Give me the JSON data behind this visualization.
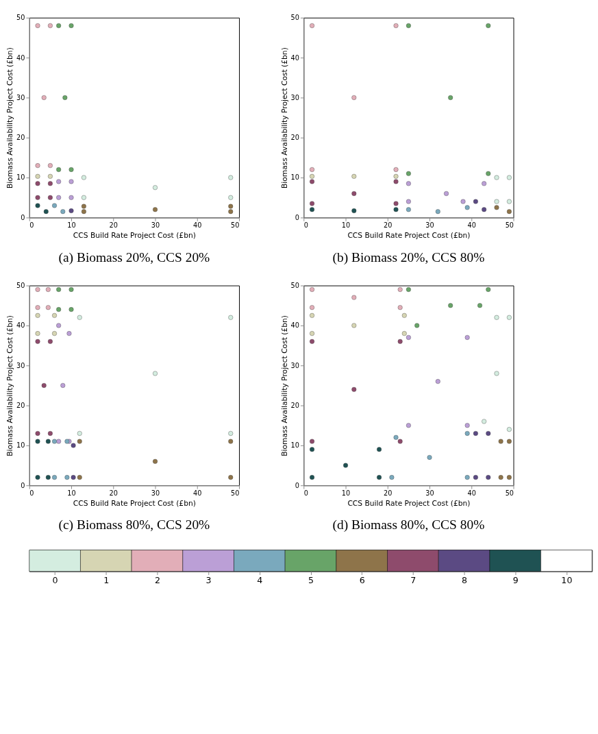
{
  "chart_data": [
    {
      "type": "scatter",
      "title": "(a) Biomass 20%, CCS 20%",
      "xlabel": "CCS Build Rate Project Cost (£bn)",
      "ylabel": "Biomass Availability Project Cost (£bn)",
      "xlim": [
        0,
        50
      ],
      "ylim": [
        0,
        50
      ],
      "xticks": [
        0,
        10,
        20,
        30,
        40,
        50
      ],
      "yticks": [
        0,
        10,
        20,
        30,
        40,
        50
      ],
      "grid": false,
      "marker": "circle",
      "clim": [
        -0.5,
        10.5
      ],
      "cticks": [
        0,
        1,
        2,
        3,
        4,
        5,
        6,
        7,
        8,
        9,
        10
      ],
      "x": [
        2,
        5,
        2,
        5,
        3.5,
        7,
        10,
        7,
        10,
        8.5,
        2,
        5,
        2,
        5,
        2,
        5,
        7,
        10,
        7,
        10,
        13,
        48,
        13,
        48,
        30,
        13,
        48,
        13,
        48,
        30,
        2,
        4,
        6,
        8,
        10
      ],
      "values": [
        48,
        48,
        13,
        13,
        30,
        48,
        48,
        12,
        12,
        30,
        10.3,
        10.3,
        8.5,
        8.5,
        5,
        5,
        9,
        9,
        5,
        5,
        10,
        10,
        5,
        5,
        7.5,
        2.8,
        2.8,
        1.5,
        1.5,
        2,
        3,
        1.5,
        3,
        1.5,
        1.7
      ],
      "cvalues": [
        2,
        2,
        2,
        2,
        2,
        5,
        5,
        5,
        5,
        5,
        1,
        1,
        7,
        7,
        7,
        7,
        3,
        3,
        3,
        3,
        0,
        0,
        0,
        0,
        0,
        6,
        6,
        6,
        6,
        6,
        9,
        9,
        4,
        4,
        8
      ],
      "colors": [
        "#e2aeb8",
        "#e2aeb8",
        "#e2aeb8",
        "#e2aeb8",
        "#e2aeb8",
        "#68a468",
        "#68a468",
        "#68a468",
        "#68a468",
        "#68a468",
        "#d6d5b3",
        "#d6d5b3",
        "#8e4b6c",
        "#8e4b6c",
        "#8e4b6c",
        "#8e4b6c",
        "#bb9fd6",
        "#bb9fd6",
        "#bb9fd6",
        "#bb9fd6",
        "#d4ede0",
        "#d4ede0",
        "#d4ede0",
        "#d4ede0",
        "#d4ede0",
        "#8e744a",
        "#8e744a",
        "#8e744a",
        "#8e744a",
        "#8e744a",
        "#1f5253",
        "#1f5253",
        "#7aa9bd",
        "#7aa9bd",
        "#5b4a83"
      ]
    },
    {
      "type": "scatter",
      "title": "(b) Biomass 20%, CCS 80%",
      "xlabel": "CCS Build Rate Project Cost (£bn)",
      "ylabel": "Biomass Availability Project Cost (£bn)",
      "xlim": [
        0,
        50
      ],
      "ylim": [
        0,
        50
      ],
      "xticks": [
        0,
        10,
        20,
        30,
        40,
        50
      ],
      "yticks": [
        0,
        10,
        20,
        30,
        40,
        50
      ],
      "grid": false,
      "marker": "circle",
      "x": [
        2,
        22,
        2,
        22,
        12,
        25,
        44,
        25,
        44,
        35,
        2,
        22,
        12,
        2,
        22,
        2,
        22,
        12,
        2,
        12,
        22,
        25,
        43,
        25,
        38,
        34,
        25,
        32,
        39,
        41,
        43,
        46,
        49,
        46,
        49,
        46,
        49
      ],
      "values": [
        48,
        48,
        12,
        12,
        30,
        48,
        48,
        11,
        11,
        30,
        10.3,
        10.3,
        10.3,
        9,
        9,
        3.5,
        3.5,
        6,
        2,
        1.7,
        2,
        8.5,
        8.5,
        4,
        4,
        6,
        2,
        1.5,
        2.5,
        4,
        2,
        10,
        10,
        4,
        4,
        2.5,
        1.5
      ],
      "colors": [
        "#e2aeb8",
        "#e2aeb8",
        "#e2aeb8",
        "#e2aeb8",
        "#e2aeb8",
        "#68a468",
        "#68a468",
        "#68a468",
        "#68a468",
        "#68a468",
        "#d6d5b3",
        "#d6d5b3",
        "#d6d5b3",
        "#8e4b6c",
        "#8e4b6c",
        "#8e4b6c",
        "#8e4b6c",
        "#8e4b6c",
        "#1f5253",
        "#1f5253",
        "#1f5253",
        "#bb9fd6",
        "#bb9fd6",
        "#bb9fd6",
        "#bb9fd6",
        "#bb9fd6",
        "#7aa9bd",
        "#7aa9bd",
        "#7aa9bd",
        "#5b4a83",
        "#5b4a83",
        "#d4ede0",
        "#d4ede0",
        "#d4ede0",
        "#d4ede0",
        "#8e744a",
        "#8e744a"
      ]
    },
    {
      "type": "scatter",
      "title": "(c) Biomass 80%, CCS 20%",
      "xlabel": "CCS Build Rate Project Cost (£bn)",
      "ylabel": "Biomass Availability Project Cost (£bn)",
      "xlim": [
        0,
        50
      ],
      "ylim": [
        0,
        50
      ],
      "xticks": [
        0,
        10,
        20,
        30,
        40,
        50
      ],
      "yticks": [
        0,
        10,
        20,
        30,
        40,
        50
      ],
      "grid": false,
      "marker": "circle",
      "x": [
        2,
        4.5,
        2,
        4.5,
        7,
        10,
        7,
        10,
        2,
        6,
        2,
        6,
        2,
        5,
        2,
        5,
        3.5,
        7,
        9.5,
        7,
        9.5,
        8,
        12,
        48,
        12,
        48,
        30,
        2,
        4.5,
        2,
        4.5,
        6,
        9,
        6,
        9,
        10.5,
        10.5,
        12,
        48,
        12,
        48,
        30
      ],
      "values": [
        49,
        49,
        44.5,
        44.5,
        49,
        49,
        44,
        44,
        42.5,
        42.5,
        38,
        38,
        36,
        36,
        13,
        13,
        25,
        40,
        38,
        11,
        11,
        25,
        42,
        42,
        13,
        13,
        28,
        11,
        11,
        2,
        2,
        11,
        11,
        2,
        2,
        10,
        2,
        11,
        11,
        2,
        2,
        6
      ],
      "colors": [
        "#e2aeb8",
        "#e2aeb8",
        "#e2aeb8",
        "#e2aeb8",
        "#68a468",
        "#68a468",
        "#68a468",
        "#68a468",
        "#d6d5b3",
        "#d6d5b3",
        "#d6d5b3",
        "#d6d5b3",
        "#8e4b6c",
        "#8e4b6c",
        "#8e4b6c",
        "#8e4b6c",
        "#8e4b6c",
        "#bb9fd6",
        "#bb9fd6",
        "#bb9fd6",
        "#bb9fd6",
        "#bb9fd6",
        "#d4ede0",
        "#d4ede0",
        "#d4ede0",
        "#d4ede0",
        "#d4ede0",
        "#1f5253",
        "#1f5253",
        "#1f5253",
        "#1f5253",
        "#7aa9bd",
        "#7aa9bd",
        "#7aa9bd",
        "#7aa9bd",
        "#5b4a83",
        "#5b4a83",
        "#8e744a",
        "#8e744a",
        "#8e744a",
        "#8e744a",
        "#8e744a"
      ]
    },
    {
      "type": "scatter",
      "title": "(d) Biomass 80%, CCS 80%",
      "xlabel": "CCS Build Rate Project Cost (£bn)",
      "ylabel": "Biomass Availability Project Cost (£bn)",
      "xlim": [
        0,
        50
      ],
      "ylim": [
        0,
        50
      ],
      "xticks": [
        0,
        10,
        20,
        30,
        40,
        50
      ],
      "yticks": [
        0,
        10,
        20,
        30,
        40,
        50
      ],
      "grid": false,
      "marker": "circle",
      "x": [
        2,
        23,
        2,
        23,
        12,
        25,
        44,
        27,
        42,
        35,
        2,
        24,
        2,
        24,
        12,
        2,
        23,
        2,
        23,
        12,
        25,
        39,
        25,
        39,
        32,
        46,
        49,
        43,
        49,
        46,
        2,
        18,
        2,
        18,
        10,
        22,
        39,
        21,
        39,
        30,
        41,
        44,
        41,
        44,
        47,
        49,
        47,
        49
      ],
      "values": [
        49,
        49,
        44.5,
        44.5,
        47,
        49,
        49,
        40,
        45,
        45,
        42.5,
        42.5,
        38,
        38,
        40,
        36,
        36,
        11,
        11,
        24,
        37,
        37,
        15,
        15,
        26,
        42,
        42,
        16,
        14,
        28,
        9,
        9,
        2,
        2,
        5,
        12,
        13,
        2,
        2,
        7,
        13,
        13,
        2,
        2,
        11,
        11,
        2,
        2
      ],
      "colors": [
        "#e2aeb8",
        "#e2aeb8",
        "#e2aeb8",
        "#e2aeb8",
        "#e2aeb8",
        "#68a468",
        "#68a468",
        "#68a468",
        "#68a468",
        "#68a468",
        "#d6d5b3",
        "#d6d5b3",
        "#d6d5b3",
        "#d6d5b3",
        "#d6d5b3",
        "#8e4b6c",
        "#8e4b6c",
        "#8e4b6c",
        "#8e4b6c",
        "#8e4b6c",
        "#bb9fd6",
        "#bb9fd6",
        "#bb9fd6",
        "#bb9fd6",
        "#bb9fd6",
        "#d4ede0",
        "#d4ede0",
        "#d4ede0",
        "#d4ede0",
        "#d4ede0",
        "#1f5253",
        "#1f5253",
        "#1f5253",
        "#1f5253",
        "#1f5253",
        "#7aa9bd",
        "#7aa9bd",
        "#7aa9bd",
        "#7aa9bd",
        "#7aa9bd",
        "#5b4a83",
        "#5b4a83",
        "#5b4a83",
        "#5b4a83",
        "#8e744a",
        "#8e744a",
        "#8e744a",
        "#8e744a"
      ]
    }
  ]
}
